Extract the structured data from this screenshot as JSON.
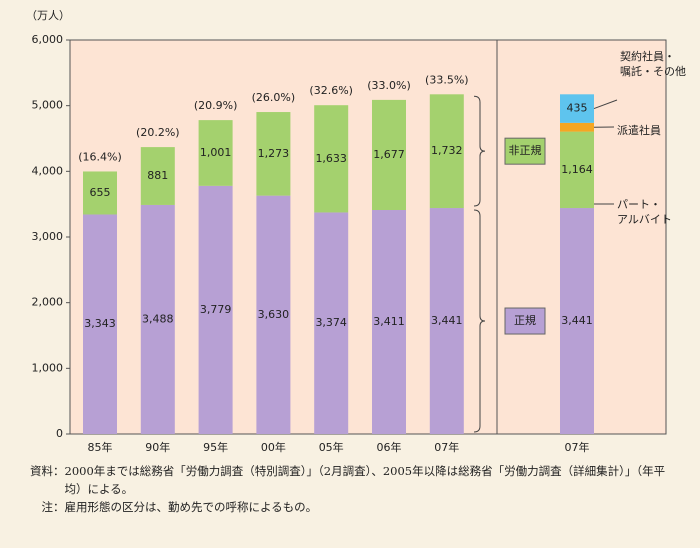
{
  "chart_data": [
    {
      "type": "bar",
      "stacked": true,
      "y_label": "（万人）",
      "categories": [
        "85年",
        "90年",
        "95年",
        "00年",
        "05年",
        "06年",
        "07年"
      ],
      "series": [
        {
          "name": "正規",
          "color": "#b7a0d4",
          "values": [
            3343,
            3488,
            3779,
            3630,
            3374,
            3411,
            3441
          ],
          "value_labels": [
            "3,343",
            "3,488",
            "3,779",
            "3,630",
            "3,374",
            "3,411",
            "3,441"
          ]
        },
        {
          "name": "非正規",
          "color": "#a4d16e",
          "values": [
            655,
            881,
            1001,
            1273,
            1633,
            1677,
            1732
          ],
          "value_labels": [
            "655",
            "881",
            "1,001",
            "1,273",
            "1,633",
            "1,677",
            "1,732"
          ]
        }
      ],
      "shares": {
        "values": [
          16.4,
          20.2,
          20.9,
          26.0,
          32.6,
          33.0,
          33.5
        ],
        "value_labels": [
          "(16.4%)",
          "(20.2%)",
          "(20.9%)",
          "(26.0%)",
          "(32.6%)",
          "(33.0%)",
          "(33.5%)"
        ]
      },
      "ylim": [
        0,
        6000
      ],
      "yticks": [
        0,
        {
          "value": 1000,
          "label": "1,000"
        },
        {
          "value": 2000,
          "label": "2,000"
        },
        {
          "value": 3000,
          "label": "3,000"
        },
        {
          "value": 4000,
          "label": "4,000"
        },
        {
          "value": 5000,
          "label": "5,000"
        },
        {
          "value": 6000,
          "label": "6,000"
        }
      ]
    },
    {
      "type": "bar",
      "stacked": true,
      "categories": [
        "07年"
      ],
      "series": [
        {
          "color": "#b7a0d4",
          "values": [
            3441
          ],
          "value_labels": [
            "3,441"
          ]
        },
        {
          "name": "パート・アルバイト",
          "color": "#a4d16e",
          "values": [
            1164
          ],
          "value_labels": [
            "1,164"
          ]
        },
        {
          "name": "派遣社員",
          "color": "#f5a623",
          "values": [
            133
          ]
        },
        {
          "name": "契約社員・嘱託・その他",
          "color": "#5ec4ee",
          "values": [
            435
          ],
          "value_labels": [
            "435"
          ]
        }
      ],
      "ylim": [
        0,
        6000
      ]
    }
  ],
  "notes": [
    "資料：2000年までは総務省「労働力調査（特別調査）」（2月調査）、2005年以降は総務省「労働力調査（詳細集計）」（年平均）による。",
    "注：雇用形態の区分は、勤め先での呼称によるもの。"
  ]
}
